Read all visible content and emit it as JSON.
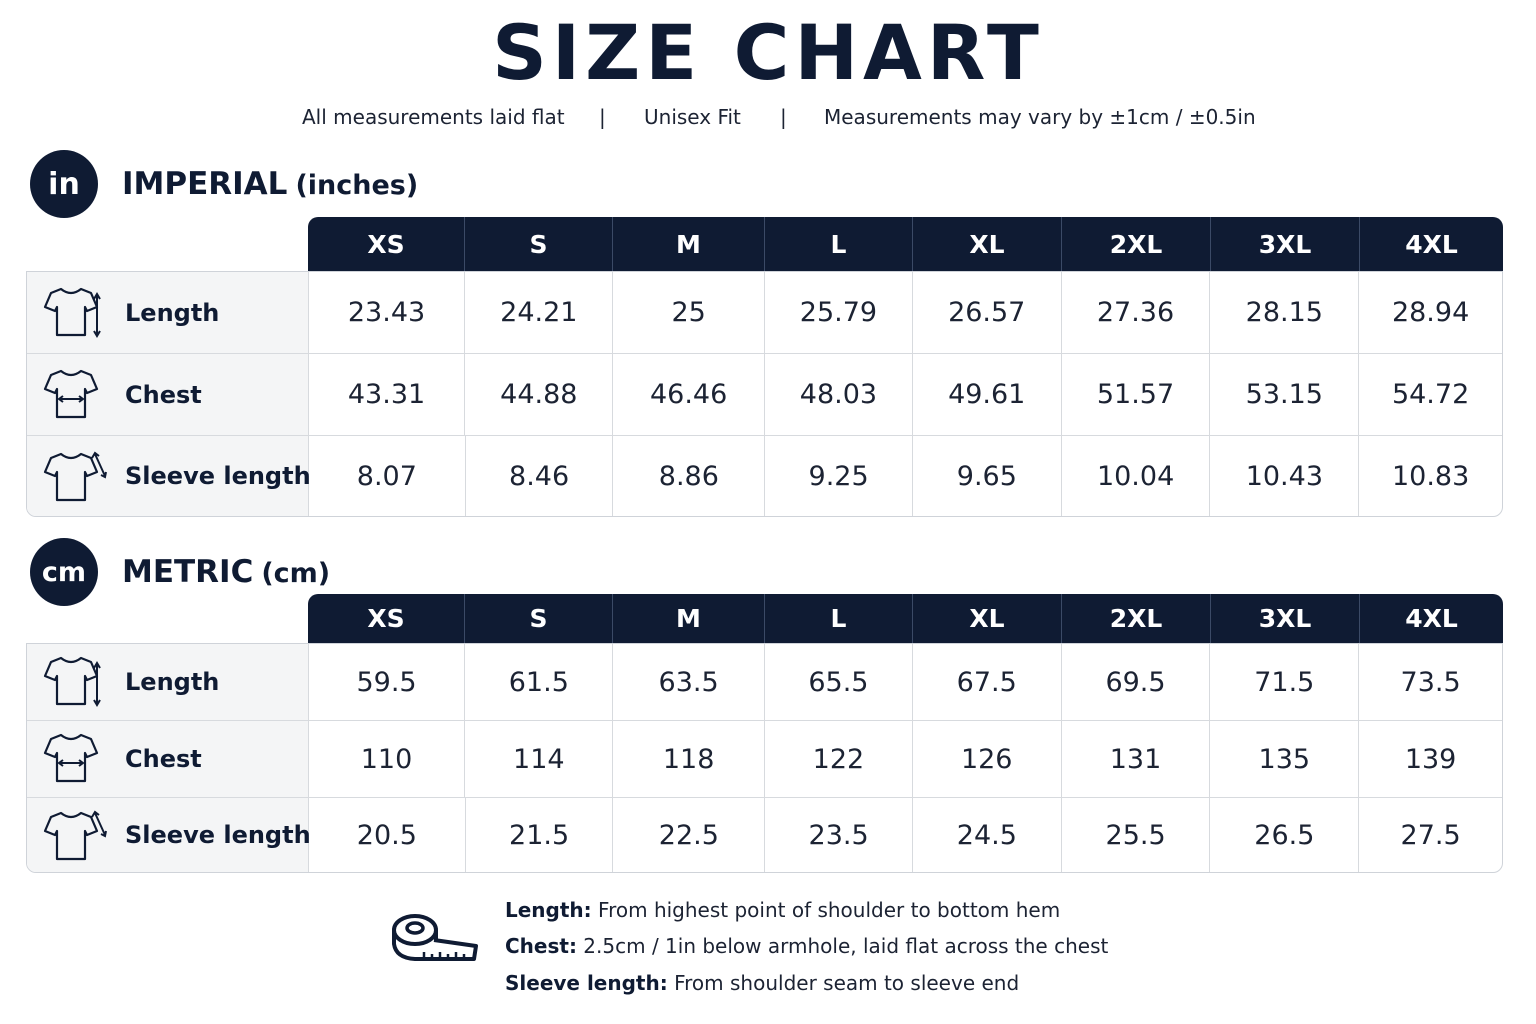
{
  "title": "SIZE CHART",
  "subtitle": {
    "item1": "All measurements laid flat",
    "sep1": "|",
    "item2": "Unisex Fit",
    "sep2": "|",
    "item3": "Measurements may vary by ±1cm / ±0.5in"
  },
  "imperial": {
    "badge": "in",
    "title": "IMPERIAL",
    "unit": "(inches)",
    "sizes": [
      "XS",
      "S",
      "M",
      "L",
      "XL",
      "2XL",
      "3XL",
      "4XL"
    ],
    "rows": [
      {
        "label": "Length",
        "icon": "tshirt-length-icon",
        "values": [
          "23.43",
          "24.21",
          "25",
          "25.79",
          "26.57",
          "27.36",
          "28.15",
          "28.94"
        ]
      },
      {
        "label": "Chest",
        "icon": "tshirt-chest-icon",
        "values": [
          "43.31",
          "44.88",
          "46.46",
          "48.03",
          "49.61",
          "51.57",
          "53.15",
          "54.72"
        ]
      },
      {
        "label": "Sleeve length",
        "icon": "tshirt-sleeve-icon",
        "values": [
          "8.07",
          "8.46",
          "8.86",
          "9.25",
          "9.65",
          "10.04",
          "10.43",
          "10.83"
        ]
      }
    ]
  },
  "metric": {
    "badge": "cm",
    "title": "METRIC",
    "unit": "(cm)",
    "sizes": [
      "XS",
      "S",
      "M",
      "L",
      "XL",
      "2XL",
      "3XL",
      "4XL"
    ],
    "rows": [
      {
        "label": "Length",
        "icon": "tshirt-length-icon",
        "values": [
          "59.5",
          "61.5",
          "63.5",
          "65.5",
          "67.5",
          "69.5",
          "71.5",
          "73.5"
        ]
      },
      {
        "label": "Chest",
        "icon": "tshirt-chest-icon",
        "values": [
          "110",
          "114",
          "118",
          "122",
          "126",
          "131",
          "135",
          "139"
        ]
      },
      {
        "label": "Sleeve length",
        "icon": "tshirt-sleeve-icon",
        "values": [
          "20.5",
          "21.5",
          "22.5",
          "23.5",
          "24.5",
          "25.5",
          "26.5",
          "27.5"
        ]
      }
    ]
  },
  "notes": [
    {
      "term": "Length:",
      "text": " From highest point of shoulder to bottom hem"
    },
    {
      "term": "Chest:",
      "text": " 2.5cm / 1in below armhole, laid flat across the chest"
    },
    {
      "term": "Sleeve length:",
      "text": " From shoulder seam to sleeve end"
    }
  ],
  "colors": {
    "navy": "#0f1b33",
    "label_bg": "#f4f5f6",
    "border": "#d7dade"
  },
  "icons": {
    "tape": "measuring-tape-icon"
  }
}
